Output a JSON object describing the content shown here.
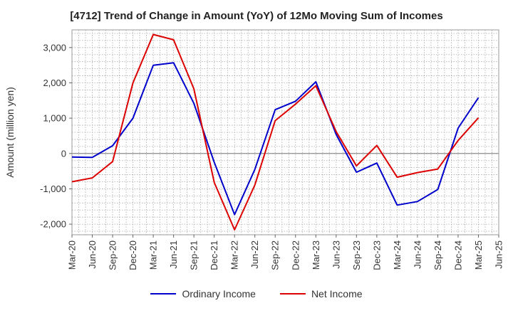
{
  "chart_data": {
    "type": "line",
    "title": "[4712]  Trend of Change in Amount (YoY) of 12Mo Moving Sum of Incomes",
    "ylabel": "Amount (million yen)",
    "xlabel": "",
    "ylim": [
      -2300,
      3500
    ],
    "yticks": [
      -2000,
      -1000,
      0,
      1000,
      2000,
      3000
    ],
    "ytick_labels": [
      "-2,000",
      "-1,000",
      "0",
      "1,000",
      "2,000",
      "3,000"
    ],
    "categories": [
      "Mar-20",
      "Jun-20",
      "Sep-20",
      "Dec-20",
      "Mar-21",
      "Jun-21",
      "Sep-21",
      "Dec-21",
      "Mar-22",
      "Jun-22",
      "Sep-22",
      "Dec-22",
      "Mar-23",
      "Jun-23",
      "Sep-23",
      "Dec-23",
      "Mar-24",
      "Jun-24",
      "Sep-24",
      "Dec-24",
      "Mar-25",
      "Jun-25"
    ],
    "series": [
      {
        "name": "Ordinary Income",
        "color": "#0000cc",
        "values": [
          -100,
          -110,
          220,
          1000,
          2500,
          2570,
          1420,
          -250,
          -1730,
          -450,
          1240,
          1480,
          2030,
          540,
          -530,
          -270,
          -1460,
          -1360,
          -1020,
          720,
          1580,
          null
        ]
      },
      {
        "name": "Net Income",
        "color": "#dd0000",
        "values": [
          -800,
          -690,
          -230,
          2000,
          3370,
          3220,
          1830,
          -820,
          -2160,
          -890,
          930,
          1400,
          1920,
          620,
          -350,
          230,
          -670,
          -540,
          -440,
          370,
          1010,
          null
        ]
      }
    ],
    "grid": true,
    "legend_position": "bottom"
  }
}
